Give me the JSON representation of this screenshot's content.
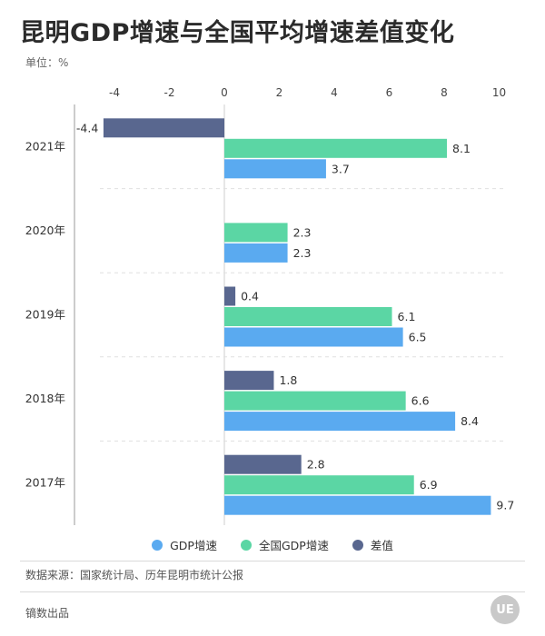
{
  "title": "昆明GDP增速与全国平均增速差值变化",
  "unit_label": "单位：%",
  "colors": {
    "gdp_growth": "#5aaaf0",
    "national_growth": "#5bd6a4",
    "difference": "#59678f"
  },
  "chart_data": {
    "type": "bar",
    "orientation": "horizontal",
    "categories": [
      "2021年",
      "2020年",
      "2019年",
      "2018年",
      "2017年"
    ],
    "xlim": [
      -4.5,
      10
    ],
    "xticks": [
      -4,
      -2,
      0,
      2,
      4,
      6,
      8,
      10
    ],
    "tick_labels": [
      "-4",
      "-2",
      "0",
      "2",
      "4",
      "6",
      "8",
      "10"
    ],
    "grid": false,
    "legend_position": "bottom",
    "series": [
      {
        "name": "GDP增速",
        "color_key": "gdp_growth",
        "values": [
          3.7,
          2.3,
          6.5,
          8.4,
          9.7
        ],
        "labels": [
          "3.7",
          "2.3",
          "6.5",
          "8.4",
          "9.7"
        ]
      },
      {
        "name": "全国GDP增速",
        "color_key": "national_growth",
        "values": [
          8.1,
          2.3,
          6.1,
          6.6,
          6.9
        ],
        "labels": [
          "8.1",
          "2.3",
          "6.1",
          "6.6",
          "6.9"
        ]
      },
      {
        "name": "差值",
        "color_key": "difference",
        "values": [
          -4.4,
          null,
          0.4,
          1.8,
          2.8
        ],
        "labels": [
          "-4.4",
          null,
          "0.4",
          "1.8",
          "2.8"
        ]
      }
    ]
  },
  "legend": [
    {
      "label": "GDP增速",
      "color": "#5aaaf0"
    },
    {
      "label": "全国GDP增速",
      "color": "#5bd6a4"
    },
    {
      "label": "差值",
      "color": "#59678f"
    }
  ],
  "source": "数据来源：国家统计局、历年昆明市统计公报",
  "footer": "镝数出品",
  "logo_text": "UE"
}
